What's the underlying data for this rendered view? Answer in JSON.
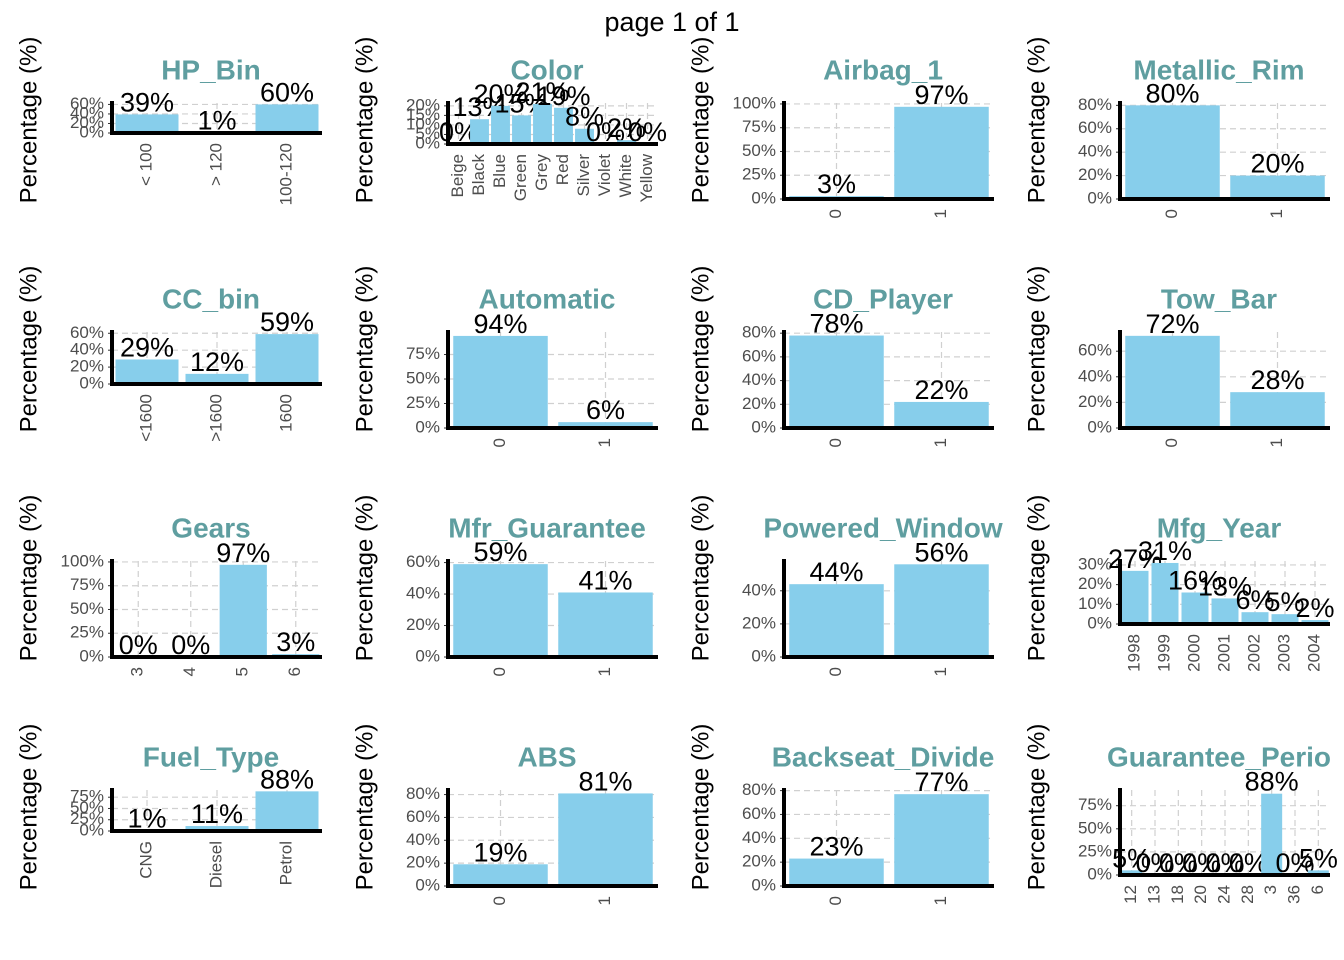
{
  "page_title": "page 1 of 1",
  "chart_data": [
    {
      "type": "bar",
      "title": "HP_Bin",
      "y_label": "Percentage (%)",
      "color": "#87ceeb",
      "grid": true,
      "categories": [
        "< 100",
        "> 120",
        "100-120"
      ],
      "values": [
        39,
        1,
        60
      ],
      "value_labels": [
        "39%",
        "1%",
        "60%"
      ],
      "ylim": [
        0,
        63
      ],
      "yticks": [
        {
          "value": 0,
          "label": "0%"
        },
        {
          "value": 20,
          "label": "20%"
        },
        {
          "value": 40,
          "label": "40%"
        },
        {
          "value": 60,
          "label": "60%"
        }
      ]
    },
    {
      "type": "bar",
      "title": "Color",
      "y_label": "Percentage (%)",
      "color": "#87ceeb",
      "grid": true,
      "categories": [
        "Beige",
        "Black",
        "Blue",
        "Green",
        "Grey",
        "Red",
        "Silver",
        "Violet",
        "White",
        "Yellow"
      ],
      "values": [
        0,
        13,
        20,
        15,
        21,
        19,
        8,
        0,
        2,
        0
      ],
      "value_labels": [
        "0%",
        "13%",
        "20%",
        "15%",
        "21%",
        "19%",
        "8%",
        "0%",
        "2%",
        "0%"
      ],
      "ylim": [
        0,
        21.5
      ],
      "yticks": [
        {
          "value": 0,
          "label": "0%"
        },
        {
          "value": 5,
          "label": "5%"
        },
        {
          "value": 10,
          "label": "10%"
        },
        {
          "value": 15,
          "label": "15%"
        },
        {
          "value": 20,
          "label": "20%"
        }
      ]
    },
    {
      "type": "bar",
      "title": "Airbag_1",
      "y_label": "Percentage (%)",
      "color": "#87ceeb",
      "grid": true,
      "categories": [
        "0",
        "1"
      ],
      "values": [
        3,
        97
      ],
      "value_labels": [
        "3%",
        "97%"
      ],
      "ylim": [
        0,
        101
      ],
      "yticks": [
        {
          "value": 0,
          "label": "0%"
        },
        {
          "value": 25,
          "label": "25%"
        },
        {
          "value": 50,
          "label": "50%"
        },
        {
          "value": 75,
          "label": "75%"
        },
        {
          "value": 100,
          "label": "100%"
        }
      ]
    },
    {
      "type": "bar",
      "title": "Metallic_Rim",
      "y_label": "Percentage (%)",
      "color": "#87ceeb",
      "grid": true,
      "categories": [
        "0",
        "1"
      ],
      "values": [
        80,
        20
      ],
      "value_labels": [
        "80%",
        "20%"
      ],
      "ylim": [
        0,
        82
      ],
      "yticks": [
        {
          "value": 0,
          "label": "0%"
        },
        {
          "value": 20,
          "label": "20%"
        },
        {
          "value": 40,
          "label": "40%"
        },
        {
          "value": 60,
          "label": "60%"
        },
        {
          "value": 80,
          "label": "80%"
        }
      ]
    },
    {
      "type": "bar",
      "title": "CC_bin",
      "y_label": "Percentage (%)",
      "color": "#87ceeb",
      "grid": true,
      "categories": [
        "<1600",
        ">1600",
        "1600"
      ],
      "values": [
        29,
        12,
        59
      ],
      "value_labels": [
        "29%",
        "12%",
        "59%"
      ],
      "ylim": [
        0,
        61.5
      ],
      "yticks": [
        {
          "value": 0,
          "label": "0%"
        },
        {
          "value": 20,
          "label": "20%"
        },
        {
          "value": 40,
          "label": "40%"
        },
        {
          "value": 60,
          "label": "60%"
        }
      ]
    },
    {
      "type": "bar",
      "title": "Automatic",
      "y_label": "Percentage (%)",
      "color": "#87ceeb",
      "grid": true,
      "categories": [
        "0",
        "1"
      ],
      "values": [
        94,
        6
      ],
      "value_labels": [
        "94%",
        "6%"
      ],
      "ylim": [
        0,
        98
      ],
      "yticks": [
        {
          "value": 0,
          "label": "0%"
        },
        {
          "value": 25,
          "label": "25%"
        },
        {
          "value": 50,
          "label": "50%"
        },
        {
          "value": 75,
          "label": "75%"
        }
      ]
    },
    {
      "type": "bar",
      "title": "CD_Player",
      "y_label": "Percentage (%)",
      "color": "#87ceeb",
      "grid": true,
      "categories": [
        "0",
        "1"
      ],
      "values": [
        78,
        22
      ],
      "value_labels": [
        "78%",
        "22%"
      ],
      "ylim": [
        0,
        81
      ],
      "yticks": [
        {
          "value": 0,
          "label": "0%"
        },
        {
          "value": 20,
          "label": "20%"
        },
        {
          "value": 40,
          "label": "40%"
        },
        {
          "value": 60,
          "label": "60%"
        },
        {
          "value": 80,
          "label": "80%"
        }
      ]
    },
    {
      "type": "bar",
      "title": "Tow_Bar",
      "y_label": "Percentage (%)",
      "color": "#87ceeb",
      "grid": true,
      "categories": [
        "0",
        "1"
      ],
      "values": [
        72,
        28
      ],
      "value_labels": [
        "72%",
        "28%"
      ],
      "ylim": [
        0,
        75
      ],
      "yticks": [
        {
          "value": 0,
          "label": "0%"
        },
        {
          "value": 20,
          "label": "20%"
        },
        {
          "value": 40,
          "label": "40%"
        },
        {
          "value": 60,
          "label": "60%"
        }
      ]
    },
    {
      "type": "bar",
      "title": "Gears",
      "y_label": "Percentage (%)",
      "color": "#87ceeb",
      "grid": true,
      "categories": [
        "3",
        "4",
        "5",
        "6"
      ],
      "values": [
        0,
        0,
        97,
        3
      ],
      "value_labels": [
        "0%",
        "0%",
        "97%",
        "3%"
      ],
      "ylim": [
        0,
        101
      ],
      "yticks": [
        {
          "value": 0,
          "label": "0%"
        },
        {
          "value": 25,
          "label": "25%"
        },
        {
          "value": 50,
          "label": "50%"
        },
        {
          "value": 75,
          "label": "75%"
        },
        {
          "value": 100,
          "label": "100%"
        }
      ]
    },
    {
      "type": "bar",
      "title": "Mfr_Guarantee",
      "y_label": "Percentage (%)",
      "color": "#87ceeb",
      "grid": true,
      "categories": [
        "0",
        "1"
      ],
      "values": [
        59,
        41
      ],
      "value_labels": [
        "59%",
        "41%"
      ],
      "ylim": [
        0,
        61
      ],
      "yticks": [
        {
          "value": 0,
          "label": "0%"
        },
        {
          "value": 20,
          "label": "20%"
        },
        {
          "value": 40,
          "label": "40%"
        },
        {
          "value": 60,
          "label": "60%"
        }
      ]
    },
    {
      "type": "bar",
      "title": "Powered_Window",
      "y_label": "Percentage (%)",
      "color": "#87ceeb",
      "grid": true,
      "categories": [
        "0",
        "1"
      ],
      "values": [
        44,
        56
      ],
      "value_labels": [
        "44%",
        "56%"
      ],
      "ylim": [
        0,
        58
      ],
      "yticks": [
        {
          "value": 0,
          "label": "0%"
        },
        {
          "value": 20,
          "label": "20%"
        },
        {
          "value": 40,
          "label": "40%"
        }
      ]
    },
    {
      "type": "bar",
      "title": "Mfg_Year",
      "y_label": "Percentage (%)",
      "color": "#87ceeb",
      "grid": true,
      "categories": [
        "1998",
        "1999",
        "2000",
        "2001",
        "2002",
        "2003",
        "2004"
      ],
      "values": [
        27,
        31,
        16,
        13,
        6,
        5,
        2
      ],
      "value_labels": [
        "27%",
        "31%",
        "16%",
        "13%",
        "6%",
        "5%",
        "2%"
      ],
      "ylim": [
        0,
        32
      ],
      "yticks": [
        {
          "value": 0,
          "label": "0%"
        },
        {
          "value": 10,
          "label": "10%"
        },
        {
          "value": 20,
          "label": "20%"
        },
        {
          "value": 30,
          "label": "30%"
        }
      ]
    },
    {
      "type": "bar",
      "title": "Fuel_Type",
      "y_label": "Percentage (%)",
      "color": "#87ceeb",
      "grid": true,
      "categories": [
        "CNG",
        "Diesel",
        "Petrol"
      ],
      "values": [
        1,
        11,
        88
      ],
      "value_labels": [
        "1%",
        "11%",
        "88%"
      ],
      "ylim": [
        0,
        91
      ],
      "yticks": [
        {
          "value": 0,
          "label": "0%"
        },
        {
          "value": 25,
          "label": "25%"
        },
        {
          "value": 50,
          "label": "50%"
        },
        {
          "value": 75,
          "label": "75%"
        }
      ]
    },
    {
      "type": "bar",
      "title": "ABS",
      "y_label": "Percentage (%)",
      "color": "#87ceeb",
      "grid": true,
      "categories": [
        "0",
        "1"
      ],
      "values": [
        19,
        81
      ],
      "value_labels": [
        "19%",
        "81%"
      ],
      "ylim": [
        0,
        84
      ],
      "yticks": [
        {
          "value": 0,
          "label": "0%"
        },
        {
          "value": 20,
          "label": "20%"
        },
        {
          "value": 40,
          "label": "40%"
        },
        {
          "value": 60,
          "label": "60%"
        },
        {
          "value": 80,
          "label": "80%"
        }
      ]
    },
    {
      "type": "bar",
      "title": "Backseat_Divide",
      "y_label": "Percentage (%)",
      "color": "#87ceeb",
      "grid": true,
      "categories": [
        "0",
        "1"
      ],
      "values": [
        23,
        77
      ],
      "value_labels": [
        "23%",
        "77%"
      ],
      "ylim": [
        0,
        80.5
      ],
      "yticks": [
        {
          "value": 0,
          "label": "0%"
        },
        {
          "value": 20,
          "label": "20%"
        },
        {
          "value": 40,
          "label": "40%"
        },
        {
          "value": 60,
          "label": "60%"
        },
        {
          "value": 80,
          "label": "80%"
        }
      ]
    },
    {
      "type": "bar",
      "title": "Guarantee_Perio",
      "y_label": "Percentage (%)",
      "color": "#87ceeb",
      "grid": true,
      "categories": [
        "12",
        "13",
        "18",
        "20",
        "24",
        "28",
        "3",
        "36",
        "6"
      ],
      "values": [
        5,
        0,
        0,
        0,
        0,
        0,
        88,
        0,
        5
      ],
      "value_labels": [
        "5%",
        "0%",
        "0%",
        "0%",
        "0%",
        "0%",
        "88%",
        "0%",
        "5%"
      ],
      "ylim": [
        0,
        92
      ],
      "yticks": [
        {
          "value": 0,
          "label": "0%"
        },
        {
          "value": 25,
          "label": "25%"
        },
        {
          "value": 50,
          "label": "50%"
        },
        {
          "value": 75,
          "label": "75%"
        }
      ]
    }
  ]
}
